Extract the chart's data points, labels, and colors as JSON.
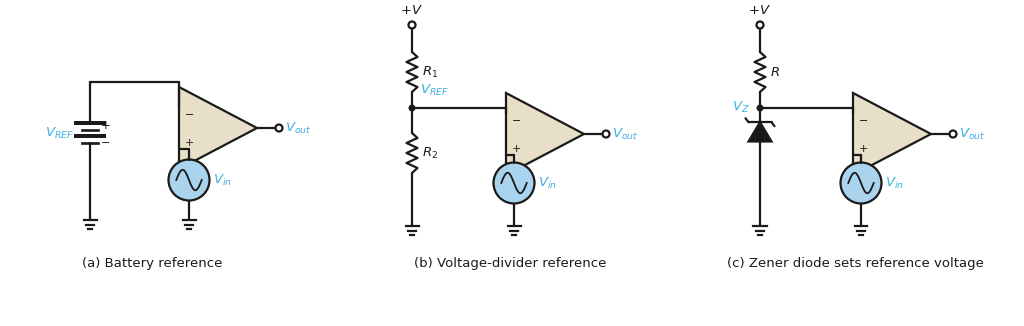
{
  "bg_color": "#ffffff",
  "line_color": "#1a1a1a",
  "op_amp_fill": "#e8dfc8",
  "blue_color": "#3aafe0",
  "source_fill": "#aad4ed",
  "caption_a": "(a) Battery reference",
  "caption_b": "(b) Voltage-divider reference",
  "caption_c": "(c) Zener diode sets reference voltage"
}
